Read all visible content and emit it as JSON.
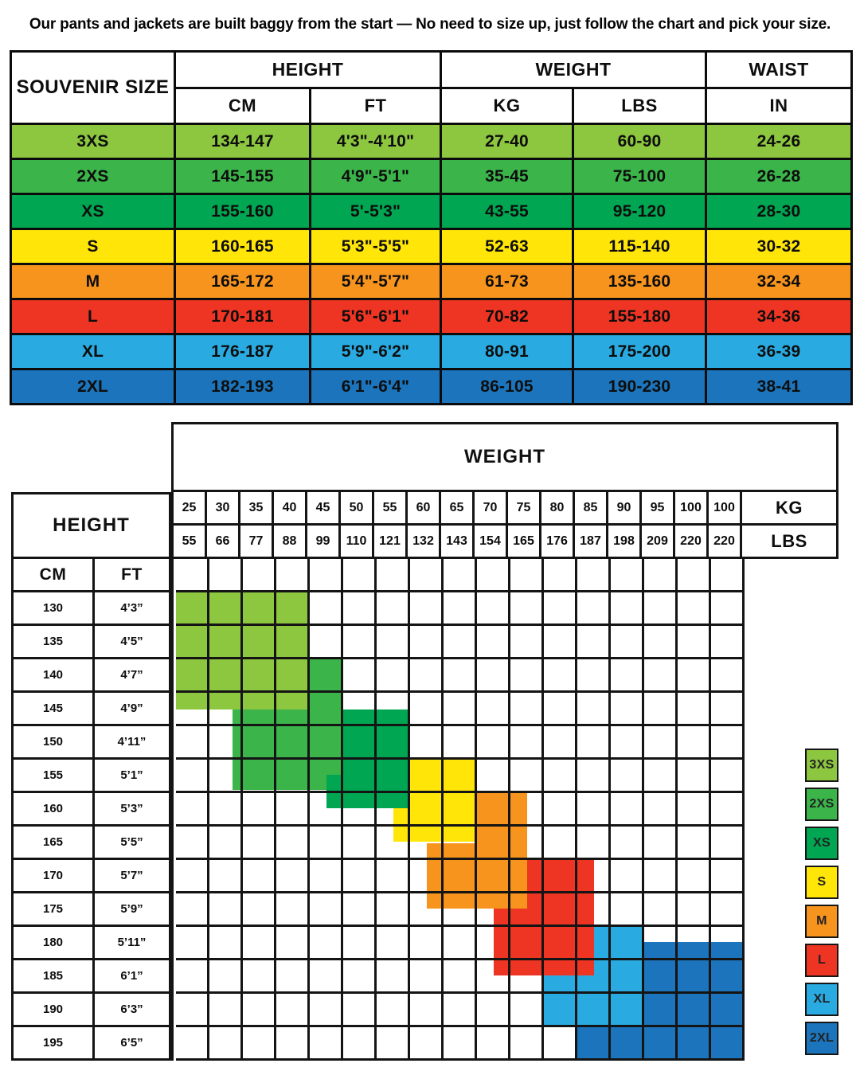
{
  "note": "Our pants and jackets are built baggy from the start — No need to size up, just follow the chart and pick your size.",
  "palette": {
    "3XS": "#8DC63F",
    "2XS": "#3BB54A",
    "XS": "#00A651",
    "S": "#FFE608",
    "M": "#F7941E",
    "L": "#EE3524",
    "XL": "#29ABE2",
    "2XL": "#1C75BC"
  },
  "chart_data": [
    {
      "type": "table",
      "title": "SOUVENIR SIZE",
      "column_groups": [
        {
          "label": "HEIGHT",
          "children": [
            "CM",
            "FT"
          ]
        },
        {
          "label": "WEIGHT",
          "children": [
            "KG",
            "LBS"
          ]
        },
        {
          "label": "WAIST",
          "children": [
            "IN"
          ]
        }
      ],
      "rows": [
        {
          "size": "3XS",
          "cm": "134-147",
          "ft": "4'3\"-4'10\"",
          "kg": "27-40",
          "lbs": "60-90",
          "waist_in": "24-26"
        },
        {
          "size": "2XS",
          "cm": "145-155",
          "ft": "4'9\"-5'1\"",
          "kg": "35-45",
          "lbs": "75-100",
          "waist_in": "26-28"
        },
        {
          "size": "XS",
          "cm": "155-160",
          "ft": "5'-5'3\"",
          "kg": "43-55",
          "lbs": "95-120",
          "waist_in": "28-30"
        },
        {
          "size": "S",
          "cm": "160-165",
          "ft": "5'3\"-5'5\"",
          "kg": "52-63",
          "lbs": "115-140",
          "waist_in": "30-32"
        },
        {
          "size": "M",
          "cm": "165-172",
          "ft": "5'4\"-5'7\"",
          "kg": "61-73",
          "lbs": "135-160",
          "waist_in": "32-34"
        },
        {
          "size": "L",
          "cm": "170-181",
          "ft": "5'6\"-6'1\"",
          "kg": "70-82",
          "lbs": "155-180",
          "waist_in": "34-36"
        },
        {
          "size": "XL",
          "cm": "176-187",
          "ft": "5'9\"-6'2\"",
          "kg": "80-91",
          "lbs": "175-200",
          "waist_in": "36-39"
        },
        {
          "size": "2XL",
          "cm": "182-193",
          "ft": "6'1\"-6'4\"",
          "kg": "86-105",
          "lbs": "190-230",
          "waist_in": "38-41"
        }
      ]
    },
    {
      "type": "heatmap",
      "weight_header": "WEIGHT",
      "height_header": "HEIGHT",
      "kg_label": "KG",
      "lbs_label": "LBS",
      "cm_label": "CM",
      "ft_label": "FT",
      "kg_values": [
        "25",
        "30",
        "35",
        "40",
        "45",
        "50",
        "55",
        "60",
        "65",
        "70",
        "75",
        "80",
        "85",
        "90",
        "95",
        "100",
        "100"
      ],
      "lbs_values": [
        "55",
        "66",
        "77",
        "88",
        "99",
        "110",
        "121",
        "132",
        "143",
        "154",
        "165",
        "176",
        "187",
        "198",
        "209",
        "220",
        "220"
      ],
      "height_rows": [
        {
          "cm": "130",
          "ft": "4’3”"
        },
        {
          "cm": "135",
          "ft": "4’5”"
        },
        {
          "cm": "140",
          "ft": "4’7”"
        },
        {
          "cm": "145",
          "ft": "4’9”"
        },
        {
          "cm": "150",
          "ft": "4’11”"
        },
        {
          "cm": "155",
          "ft": "5’1”"
        },
        {
          "cm": "160",
          "ft": "5’3”"
        },
        {
          "cm": "165",
          "ft": "5’5”"
        },
        {
          "cm": "170",
          "ft": "5’7”"
        },
        {
          "cm": "175",
          "ft": "5’9”"
        },
        {
          "cm": "180",
          "ft": "5’11”"
        },
        {
          "cm": "185",
          "ft": "6’1”"
        },
        {
          "cm": "190",
          "ft": "6’3”"
        },
        {
          "cm": "195",
          "ft": "6’5”"
        }
      ],
      "blocks": [
        {
          "size": "3XS",
          "c0": 0,
          "r0": 0,
          "c1": 4,
          "r1": 3.5
        },
        {
          "size": "2XS",
          "c0": 4,
          "r0": 2,
          "c1": 5,
          "r1": 3.5
        },
        {
          "size": "2XS",
          "c0": 1.7,
          "r0": 3.5,
          "c1": 5,
          "r1": 5.9
        },
        {
          "size": "XS",
          "c0": 5,
          "r0": 3.5,
          "c1": 7,
          "r1": 6.45
        },
        {
          "size": "XS",
          "c0": 4.5,
          "r0": 5.45,
          "c1": 5,
          "r1": 6.45
        },
        {
          "size": "S",
          "c0": 7,
          "r0": 5,
          "c1": 9,
          "r1": 6.5
        },
        {
          "size": "S",
          "c0": 6.5,
          "r0": 6.45,
          "c1": 9,
          "r1": 7.45
        },
        {
          "size": "M",
          "c0": 9,
          "r0": 6,
          "c1": 10.5,
          "r1": 7.5
        },
        {
          "size": "M",
          "c0": 7.5,
          "r0": 7.5,
          "c1": 10.5,
          "r1": 9.45
        },
        {
          "size": "XL",
          "c0": 12.5,
          "r0": 10,
          "c1": 14,
          "r1": 12
        },
        {
          "size": "XL",
          "c0": 11,
          "r0": 11,
          "c1": 14,
          "r1": 13
        },
        {
          "size": "2XL",
          "c0": 14,
          "r0": 10.45,
          "c1": 17,
          "r1": 13
        },
        {
          "size": "2XL",
          "c0": 12,
          "r0": 13,
          "c1": 17,
          "r1": 14
        },
        {
          "size": "L",
          "c0": 10.5,
          "r0": 8,
          "c1": 12.5,
          "r1": 11.45
        },
        {
          "size": "L",
          "c0": 9.5,
          "r0": 9.45,
          "c1": 10.5,
          "r1": 11.45
        }
      ],
      "legend": [
        "3XS",
        "2XS",
        "XS",
        "S",
        "M",
        "L",
        "XL",
        "2XL"
      ]
    }
  ]
}
